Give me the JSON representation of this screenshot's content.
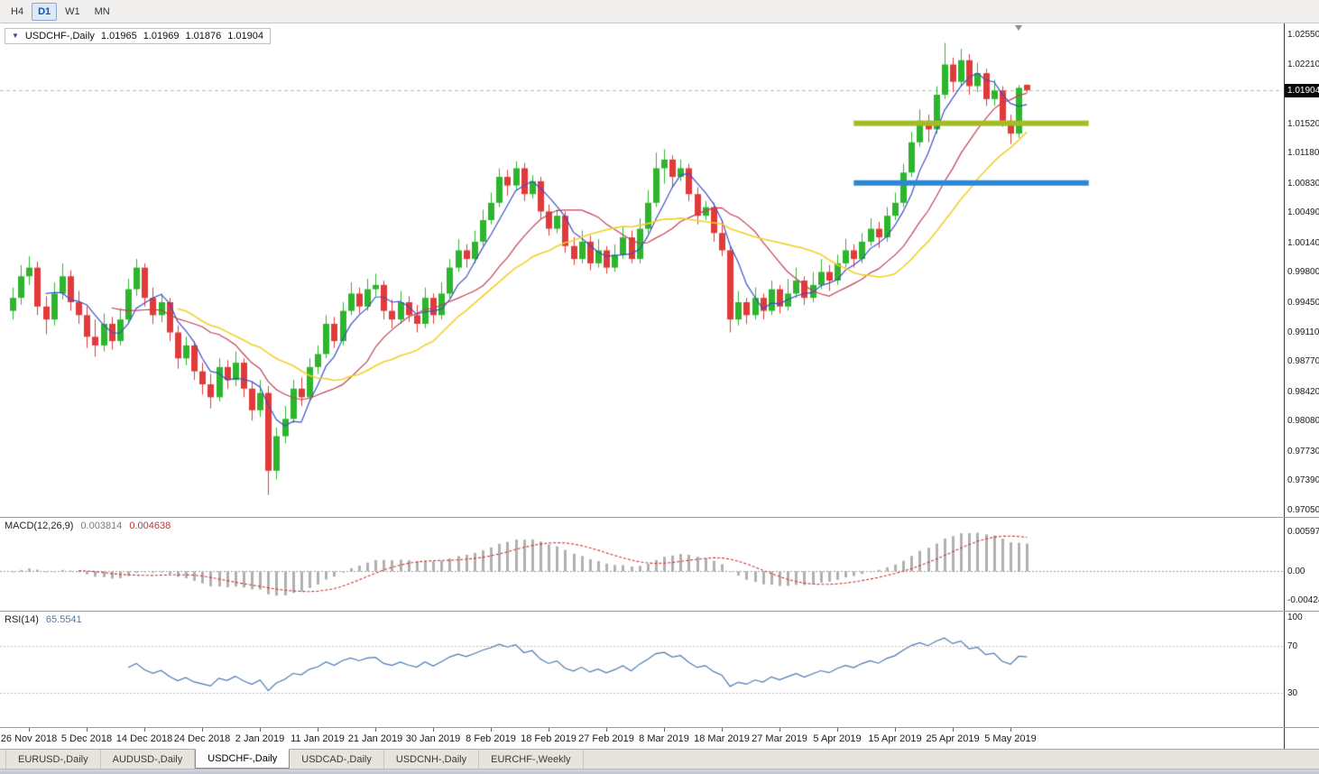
{
  "ui": {
    "toolbar": {
      "timeframes": [
        {
          "label": "H4",
          "active": false
        },
        {
          "label": "D1",
          "active": true
        },
        {
          "label": "W1",
          "active": false
        },
        {
          "label": "MN",
          "active": false
        }
      ]
    },
    "chart_header": {
      "symbol": "USDCHF-,Daily",
      "open": "1.01965",
      "high": "1.01969",
      "low": "1.01876",
      "close": "1.01904"
    },
    "macd_header": {
      "name": "MACD(12,26,9)",
      "main_value": "0.003814",
      "signal_value": "0.004638"
    },
    "rsi_header": {
      "name": "RSI(14)",
      "value": "65.5541"
    },
    "tabs": [
      {
        "label": "EURUSD-,Daily",
        "active": false
      },
      {
        "label": "AUDUSD-,Daily",
        "active": false
      },
      {
        "label": "USDCHF-,Daily",
        "active": true
      },
      {
        "label": "USDCAD-,Daily",
        "active": false
      },
      {
        "label": "USDCNH-,Daily",
        "active": false
      },
      {
        "label": "EURCHF-,Weekly",
        "active": false
      }
    ]
  },
  "chart_data": {
    "type": "candlestick",
    "title": "USDCHF-,Daily",
    "symbol": "USDCHF-",
    "timeframe": "Daily",
    "candle_colors": {
      "bull": "#2db52d",
      "bear": "#e03a3a"
    },
    "y_axis": {
      "range_top": 1.02675,
      "range_bottom": 0.96966,
      "labels": [
        {
          "text": "1.02550",
          "value": 1.0255
        },
        {
          "text": "1.02210",
          "value": 1.0221
        },
        {
          "text": "1.01520",
          "value": 1.0152
        },
        {
          "text": "1.01180",
          "value": 1.0118
        },
        {
          "text": "1.00830",
          "value": 1.0083
        },
        {
          "text": "1.00490",
          "value": 1.0049
        },
        {
          "text": "1.00140",
          "value": 1.0014
        },
        {
          "text": "0.99800",
          "value": 0.998
        },
        {
          "text": "0.99450",
          "value": 0.9945
        },
        {
          "text": "0.99110",
          "value": 0.9911
        },
        {
          "text": "0.98770",
          "value": 0.9877
        },
        {
          "text": "0.98420",
          "value": 0.9842
        },
        {
          "text": "0.98080",
          "value": 0.9808
        },
        {
          "text": "0.97730",
          "value": 0.9773
        },
        {
          "text": "0.97390",
          "value": 0.9739
        },
        {
          "text": "0.97050",
          "value": 0.9705
        }
      ],
      "current_price": {
        "text": "1.01904",
        "value": 1.01904
      }
    },
    "x_axis": {
      "labels": [
        {
          "text": "26 Nov 2018",
          "index": 2
        },
        {
          "text": "5 Dec 2018",
          "index": 9
        },
        {
          "text": "14 Dec 2018",
          "index": 16
        },
        {
          "text": "24 Dec 2018",
          "index": 23
        },
        {
          "text": "2 Jan 2019",
          "index": 30
        },
        {
          "text": "11 Jan 2019",
          "index": 37
        },
        {
          "text": "21 Jan 2019",
          "index": 44
        },
        {
          "text": "30 Jan 2019",
          "index": 51
        },
        {
          "text": "8 Feb 2019",
          "index": 58
        },
        {
          "text": "18 Feb 2019",
          "index": 65
        },
        {
          "text": "27 Feb 2019",
          "index": 72
        },
        {
          "text": "8 Mar 2019",
          "index": 79
        },
        {
          "text": "18 Mar 2019",
          "index": 86
        },
        {
          "text": "27 Mar 2019",
          "index": 93
        },
        {
          "text": "5 Apr 2019",
          "index": 100
        },
        {
          "text": "15 Apr 2019",
          "index": 107
        },
        {
          "text": "25 Apr 2019",
          "index": 114
        },
        {
          "text": "5 May 2019",
          "index": 121
        }
      ]
    },
    "ohlc": [
      [
        0.9935,
        0.9962,
        0.9925,
        0.995
      ],
      [
        0.995,
        0.9988,
        0.9942,
        0.9975
      ],
      [
        0.9975,
        0.9998,
        0.9965,
        0.9985
      ],
      [
        0.9985,
        0.9992,
        0.993,
        0.994
      ],
      [
        0.994,
        0.9952,
        0.9908,
        0.9925
      ],
      [
        0.9925,
        0.9968,
        0.9918,
        0.9955
      ],
      [
        0.9955,
        0.999,
        0.9948,
        0.9975
      ],
      [
        0.9975,
        0.9982,
        0.9935,
        0.9945
      ],
      [
        0.9945,
        0.9958,
        0.992,
        0.993
      ],
      [
        0.993,
        0.994,
        0.9892,
        0.9905
      ],
      [
        0.9905,
        0.9925,
        0.9882,
        0.9895
      ],
      [
        0.9895,
        0.9932,
        0.9888,
        0.992
      ],
      [
        0.992,
        0.9928,
        0.989,
        0.99
      ],
      [
        0.99,
        0.9938,
        0.9895,
        0.9925
      ],
      [
        0.9925,
        0.9972,
        0.992,
        0.996
      ],
      [
        0.996,
        0.9995,
        0.9952,
        0.9985
      ],
      [
        0.9985,
        0.999,
        0.994,
        0.995
      ],
      [
        0.995,
        0.9962,
        0.992,
        0.993
      ],
      [
        0.993,
        0.9955,
        0.9922,
        0.9945
      ],
      [
        0.9945,
        0.995,
        0.99,
        0.991
      ],
      [
        0.991,
        0.9918,
        0.9868,
        0.988
      ],
      [
        0.988,
        0.9905,
        0.9872,
        0.9895
      ],
      [
        0.9895,
        0.99,
        0.9855,
        0.9865
      ],
      [
        0.9865,
        0.9875,
        0.9838,
        0.985
      ],
      [
        0.985,
        0.9862,
        0.9822,
        0.9835
      ],
      [
        0.9835,
        0.988,
        0.983,
        0.987
      ],
      [
        0.987,
        0.9878,
        0.9845,
        0.9855
      ],
      [
        0.9855,
        0.9888,
        0.9848,
        0.9875
      ],
      [
        0.9875,
        0.988,
        0.9835,
        0.9845
      ],
      [
        0.9845,
        0.9852,
        0.9808,
        0.982
      ],
      [
        0.982,
        0.9855,
        0.9812,
        0.984
      ],
      [
        0.984,
        0.9848,
        0.9722,
        0.975
      ],
      [
        0.975,
        0.98,
        0.974,
        0.979
      ],
      [
        0.979,
        0.9825,
        0.9782,
        0.981
      ],
      [
        0.981,
        0.9855,
        0.9805,
        0.9845
      ],
      [
        0.9845,
        0.9858,
        0.9825,
        0.9835
      ],
      [
        0.9835,
        0.988,
        0.983,
        0.987
      ],
      [
        0.987,
        0.9895,
        0.9862,
        0.9885
      ],
      [
        0.9885,
        0.993,
        0.988,
        0.992
      ],
      [
        0.992,
        0.9928,
        0.9892,
        0.99
      ],
      [
        0.99,
        0.9945,
        0.9895,
        0.9935
      ],
      [
        0.9935,
        0.9968,
        0.993,
        0.9955
      ],
      [
        0.9955,
        0.9962,
        0.9932,
        0.994
      ],
      [
        0.994,
        0.9972,
        0.9935,
        0.996
      ],
      [
        0.996,
        0.9978,
        0.9952,
        0.9965
      ],
      [
        0.9965,
        0.997,
        0.9925,
        0.9935
      ],
      [
        0.9935,
        0.9948,
        0.9915,
        0.9925
      ],
      [
        0.9925,
        0.9958,
        0.992,
        0.9945
      ],
      [
        0.9945,
        0.9952,
        0.9922,
        0.993
      ],
      [
        0.993,
        0.9942,
        0.991,
        0.992
      ],
      [
        0.992,
        0.9962,
        0.9915,
        0.995
      ],
      [
        0.995,
        0.9955,
        0.992,
        0.993
      ],
      [
        0.993,
        0.9968,
        0.9925,
        0.9955
      ],
      [
        0.9955,
        0.9995,
        0.995,
        0.9985
      ],
      [
        0.9985,
        1.0018,
        0.998,
        1.0005
      ],
      [
        1.0005,
        1.0012,
        0.9985,
        0.9995
      ],
      [
        0.9995,
        1.0028,
        0.999,
        1.0015
      ],
      [
        1.0015,
        1.0052,
        1.001,
        1.004
      ],
      [
        1.004,
        1.0072,
        1.0035,
        1.006
      ],
      [
        1.006,
        1.01,
        1.0055,
        1.009
      ],
      [
        1.009,
        1.0098,
        1.0068,
        1.008
      ],
      [
        1.008,
        1.0108,
        1.0075,
        1.01
      ],
      [
        1.01,
        1.0106,
        1.0062,
        1.007
      ],
      [
        1.007,
        1.0092,
        1.0065,
        1.0085
      ],
      [
        1.0085,
        1.009,
        1.0042,
        1.005
      ],
      [
        1.005,
        1.0058,
        1.0022,
        1.003
      ],
      [
        1.003,
        1.0052,
        1.0025,
        1.0045
      ],
      [
        1.0045,
        1.005,
        1.0002,
        1.001
      ],
      [
        1.001,
        1.002,
        0.9988,
        0.9995
      ],
      [
        0.9995,
        1.0028,
        0.999,
        1.0015
      ],
      [
        1.0015,
        1.0022,
        0.9982,
        0.999
      ],
      [
        0.999,
        1.0018,
        0.9985,
        1.0005
      ],
      [
        1.0005,
        1.001,
        0.9978,
        0.9985
      ],
      [
        0.9985,
        1.0012,
        0.998,
        1.0
      ],
      [
        1.0,
        1.0032,
        0.9995,
        1.002
      ],
      [
        1.002,
        1.0028,
        0.999,
        0.9995
      ],
      [
        0.9995,
        1.0042,
        0.999,
        1.003
      ],
      [
        1.003,
        1.0075,
        1.0025,
        1.006
      ],
      [
        1.006,
        1.0118,
        1.0055,
        1.01
      ],
      [
        1.01,
        1.0122,
        1.0082,
        1.011
      ],
      [
        1.011,
        1.0115,
        1.0078,
        1.009
      ],
      [
        1.009,
        1.011,
        1.0085,
        1.01
      ],
      [
        1.01,
        1.0105,
        1.0062,
        1.007
      ],
      [
        1.007,
        1.0078,
        1.0035,
        1.0045
      ],
      [
        1.0045,
        1.0062,
        1.004,
        1.0055
      ],
      [
        1.0055,
        1.006,
        1.0015,
        1.0025
      ],
      [
        1.0025,
        1.004,
        0.9998,
        1.0005
      ],
      [
        1.0005,
        1.001,
        0.991,
        0.9925
      ],
      [
        0.9925,
        0.9958,
        0.9918,
        0.9945
      ],
      [
        0.9945,
        0.995,
        0.992,
        0.993
      ],
      [
        0.993,
        0.9962,
        0.9925,
        0.995
      ],
      [
        0.995,
        0.9955,
        0.9925,
        0.9935
      ],
      [
        0.9935,
        0.997,
        0.993,
        0.996
      ],
      [
        0.996,
        0.9965,
        0.9932,
        0.994
      ],
      [
        0.994,
        0.9972,
        0.9935,
        0.9955
      ],
      [
        0.9955,
        0.9985,
        0.995,
        0.997
      ],
      [
        0.997,
        0.9975,
        0.9942,
        0.995
      ],
      [
        0.995,
        0.998,
        0.9945,
        0.9965
      ],
      [
        0.9965,
        0.9995,
        0.996,
        0.998
      ],
      [
        0.998,
        0.9988,
        0.9958,
        0.997
      ],
      [
        0.997,
        1.0,
        0.9965,
        0.999
      ],
      [
        0.999,
        1.0018,
        0.9985,
        1.0005
      ],
      [
        1.0005,
        1.0012,
        0.9985,
        0.9995
      ],
      [
        0.9995,
        1.0025,
        0.999,
        1.0015
      ],
      [
        1.0015,
        1.0042,
        1.001,
        1.003
      ],
      [
        1.003,
        1.0038,
        1.0008,
        1.002
      ],
      [
        1.002,
        1.0055,
        1.0015,
        1.0045
      ],
      [
        1.0045,
        1.0072,
        1.004,
        1.006
      ],
      [
        1.006,
        1.0105,
        1.0055,
        1.0095
      ],
      [
        1.0095,
        1.0142,
        1.009,
        1.013
      ],
      [
        1.013,
        1.0168,
        1.0125,
        1.0155
      ],
      [
        1.0155,
        1.0162,
        1.013,
        1.0145
      ],
      [
        1.0145,
        1.0195,
        1.014,
        1.0185
      ],
      [
        1.0185,
        1.0245,
        1.018,
        1.022
      ],
      [
        1.022,
        1.0228,
        1.0188,
        1.02
      ],
      [
        1.02,
        1.0238,
        1.0195,
        1.0225
      ],
      [
        1.0225,
        1.0232,
        1.0185,
        1.0195
      ],
      [
        1.0195,
        1.0222,
        1.0188,
        1.021
      ],
      [
        1.021,
        1.0215,
        1.0172,
        1.018
      ],
      [
        1.018,
        1.0202,
        1.0172,
        1.019
      ],
      [
        1.019,
        1.0195,
        1.0148,
        1.0155
      ],
      [
        1.0155,
        1.0162,
        1.0128,
        1.014
      ],
      [
        1.014,
        1.0196,
        1.0135,
        1.0193
      ],
      [
        1.01965,
        1.01969,
        1.01876,
        1.01904
      ]
    ],
    "moving_averages": [
      {
        "name": "fast-ma",
        "period": 5,
        "color": "#3b4fc8"
      },
      {
        "name": "medium-ma",
        "period": 13,
        "color": "#c04055"
      },
      {
        "name": "slow-ma",
        "period": 21,
        "color": "#f0d028"
      }
    ],
    "horizontal_lines": [
      {
        "name": "resistance-line",
        "price": 1.0152,
        "color": "#a3bc26",
        "thickness": 6,
        "start_index": 102,
        "end_index": 130.5
      },
      {
        "name": "support-line",
        "price": 1.0083,
        "color": "#2f86d2",
        "thickness": 6,
        "start_index": 102,
        "end_index": 130.5
      }
    ],
    "macd": {
      "params": [
        12,
        26,
        9
      ],
      "histogram_color": "#b0b0b0",
      "signal_color": "#cc3333",
      "range_top": 0.00796,
      "range_bottom": -0.00584,
      "labels": [
        {
          "text": "0.00597",
          "value": 0.00597
        },
        {
          "text": "0.00",
          "value": 0
        },
        {
          "text": "-0.00424",
          "value": -0.00424
        }
      ]
    },
    "rsi": {
      "period": 14,
      "line_color": "#4a78b0",
      "range_top": 100,
      "range_bottom": 0,
      "levels": [
        70,
        30
      ],
      "labels": [
        {
          "text": "100",
          "value": 100
        },
        {
          "text": "70",
          "value": 70
        },
        {
          "text": "30",
          "value": 30
        }
      ]
    }
  }
}
